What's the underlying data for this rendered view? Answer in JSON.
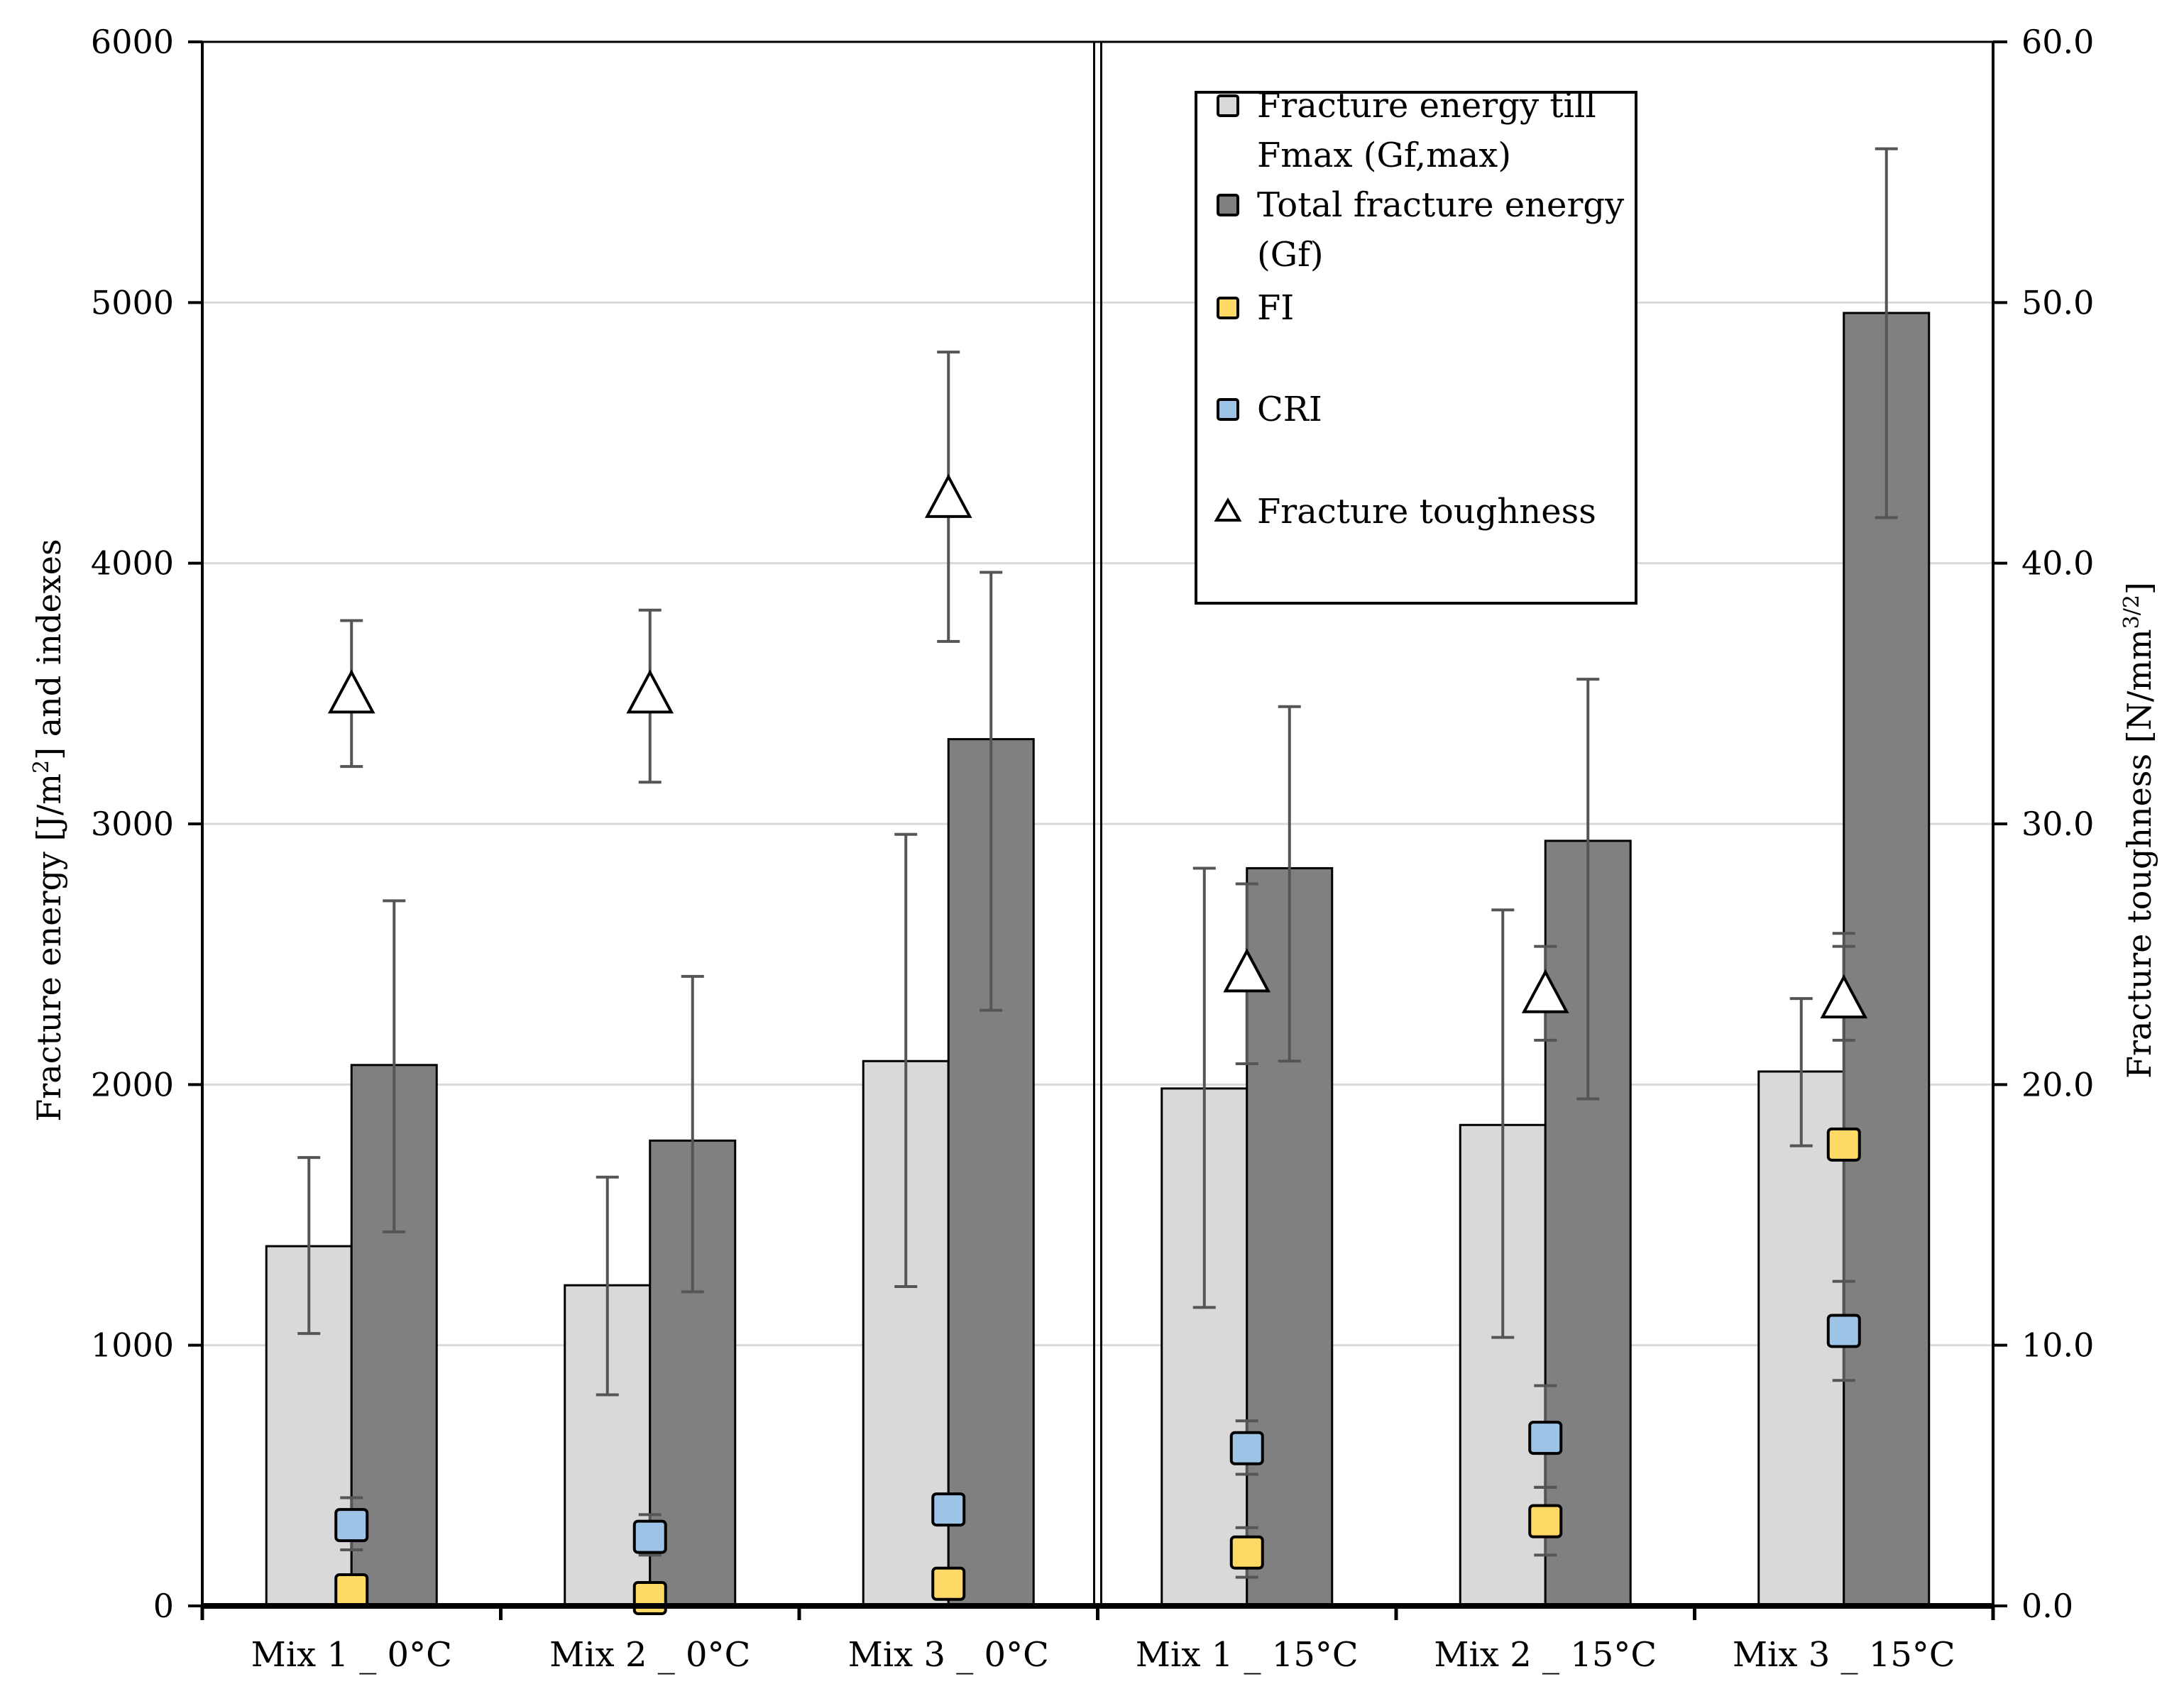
{
  "chart_data": {
    "type": "bar",
    "categories": [
      "Mix 1 _ 0°C",
      "Mix 2 _ 0°C",
      "Mix 3 _ 0°C",
      "Mix 1 _ 15°C",
      "Mix 2 _ 15°C",
      "Mix 3 _ 15°C"
    ],
    "left_axis": {
      "label_prefix": "Fracture energy [J/m",
      "label_sup": "2",
      "label_suffix": "] and indexes",
      "ylim": [
        0,
        6000
      ],
      "ticks": [
        "0",
        "1000",
        "2000",
        "3000",
        "4000",
        "5000",
        "6000"
      ],
      "tick_values": [
        0,
        1000,
        2000,
        3000,
        4000,
        5000,
        6000
      ]
    },
    "right_axis": {
      "label_prefix": "Fracture toughness [N/mm",
      "label_sup": "3/2",
      "label_suffix": "]",
      "ylim": [
        0,
        60
      ],
      "ticks": [
        "0.0",
        "10.0",
        "20.0",
        "30.0",
        "40.0",
        "50.0",
        "60.0"
      ],
      "tick_values": [
        0,
        10,
        20,
        30,
        40,
        50,
        60
      ]
    },
    "series": [
      {
        "name": "Fracture energy till Fmax (Gf,max)",
        "kind": "bar",
        "axis": "left",
        "color": "#d9d9d9",
        "values": [
          1380,
          1230,
          2090,
          1985,
          1845,
          2050
        ],
        "err_low": [
          1045,
          810,
          1225,
          1145,
          1030,
          1765
        ],
        "err_high": [
          1720,
          1645,
          2960,
          2830,
          2670,
          2330
        ]
      },
      {
        "name": "Total fracture energy (Gf)",
        "kind": "bar",
        "axis": "left",
        "color": "#808080",
        "values": [
          2075,
          1785,
          3325,
          2830,
          2935,
          4960
        ],
        "err_low": [
          1435,
          1205,
          2285,
          2090,
          1945,
          4175
        ],
        "err_high": [
          2705,
          2415,
          3965,
          3450,
          3555,
          5590
        ]
      },
      {
        "name": "FI",
        "kind": "square",
        "axis": "left",
        "color": "#ffd966",
        "values": [
          60,
          30,
          85,
          205,
          325,
          1770
        ],
        "err_low": [
          40,
          15,
          70,
          110,
          195,
          1010
        ],
        "err_high": [
          85,
          50,
          100,
          300,
          455,
          2530
        ]
      },
      {
        "name": "CRI",
        "kind": "square",
        "axis": "left",
        "color": "#9dc3e6",
        "values": [
          310,
          265,
          370,
          605,
          645,
          1055
        ],
        "err_low": [
          215,
          195,
          330,
          505,
          455,
          865
        ],
        "err_high": [
          415,
          350,
          410,
          710,
          845,
          1245
        ]
      },
      {
        "name": "Fracture toughness",
        "kind": "triangle",
        "axis": "right",
        "color": "#ffffff",
        "values": [
          35.0,
          35.0,
          42.5,
          24.3,
          23.5,
          23.3
        ],
        "err_low": [
          32.2,
          31.6,
          37.0,
          20.8,
          21.7,
          21.7
        ],
        "err_high": [
          37.8,
          38.2,
          48.1,
          27.7,
          25.3,
          25.8
        ]
      }
    ],
    "legend": {
      "position": "top-center",
      "entries": [
        {
          "lines": [
            "Fracture energy till",
            "Fmax (Gf,max)"
          ],
          "marker": "square",
          "color": "#d9d9d9"
        },
        {
          "lines": [
            "Total fracture energy",
            "(Gf)"
          ],
          "marker": "square",
          "color": "#808080"
        },
        {
          "lines": [
            "FI"
          ],
          "marker": "square",
          "color": "#ffd966"
        },
        {
          "lines": [
            "CRI"
          ],
          "marker": "square",
          "color": "#9dc3e6"
        },
        {
          "lines": [
            "Fracture toughness"
          ],
          "marker": "triangle",
          "color": "#ffffff"
        }
      ]
    },
    "grid": true,
    "divider_after_category": 3
  }
}
